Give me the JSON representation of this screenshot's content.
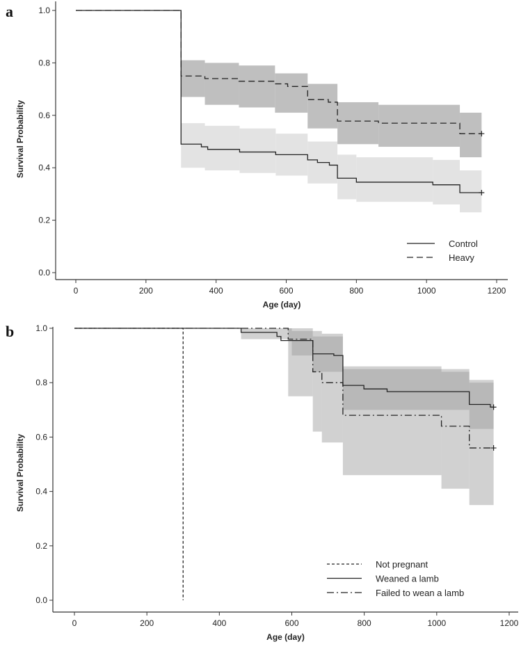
{
  "chart_data": [
    {
      "type": "line",
      "panel_label": "a",
      "xlabel": "Age (day)",
      "ylabel": "Survival Probability",
      "xlim": [
        -60,
        1230
      ],
      "ylim": [
        0,
        1.0
      ],
      "xticks": [
        "0",
        "200",
        "400",
        "600",
        "800",
        "1000",
        "1200"
      ],
      "yticks": [
        "0.0",
        "0.2",
        "0.4",
        "0.6",
        "0.8",
        "1.0"
      ],
      "legend_position": "bottom-right",
      "series": [
        {
          "name": "Control",
          "style": "solid",
          "steps": [
            [
              0,
              1.0
            ],
            [
              300,
              0.49
            ],
            [
              358,
              0.48
            ],
            [
              376,
              0.47
            ],
            [
              467,
              0.46
            ],
            [
              570,
              0.45
            ],
            [
              661,
              0.43
            ],
            [
              689,
              0.42
            ],
            [
              723,
              0.41
            ],
            [
              746,
              0.36
            ],
            [
              800,
              0.345
            ],
            [
              1018,
              0.335
            ],
            [
              1095,
              0.305
            ]
          ],
          "end": 1157,
          "censored": [
            1157
          ],
          "ci": [
            [
              300,
              368,
              0.4,
              0.57
            ],
            [
              368,
              467,
              0.39,
              0.56
            ],
            [
              467,
              570,
              0.38,
              0.55
            ],
            [
              570,
              661,
              0.37,
              0.53
            ],
            [
              661,
              746,
              0.34,
              0.5
            ],
            [
              746,
              800,
              0.28,
              0.45
            ],
            [
              800,
              1018,
              0.27,
              0.44
            ],
            [
              1018,
              1095,
              0.26,
              0.43
            ],
            [
              1095,
              1157,
              0.23,
              0.39
            ]
          ],
          "ci_color": "#e3e3e3"
        },
        {
          "name": "Heavy",
          "style": "dashed",
          "steps": [
            [
              0,
              1.0
            ],
            [
              300,
              0.75
            ],
            [
              368,
              0.74
            ],
            [
              465,
              0.73
            ],
            [
              568,
              0.72
            ],
            [
              604,
              0.71
            ],
            [
              661,
              0.66
            ],
            [
              720,
              0.65
            ],
            [
              746,
              0.578
            ],
            [
              863,
              0.57
            ],
            [
              1095,
              0.53
            ]
          ],
          "end": 1157,
          "censored": [
            1157
          ],
          "ci": [
            [
              300,
              368,
              0.67,
              0.81
            ],
            [
              368,
              465,
              0.64,
              0.8
            ],
            [
              465,
              568,
              0.63,
              0.79
            ],
            [
              568,
              661,
              0.61,
              0.76
            ],
            [
              661,
              746,
              0.55,
              0.72
            ],
            [
              746,
              863,
              0.49,
              0.65
            ],
            [
              863,
              1095,
              0.48,
              0.64
            ],
            [
              1095,
              1157,
              0.44,
              0.61
            ]
          ],
          "ci_color": "#bfbfbf"
        }
      ]
    },
    {
      "type": "line",
      "panel_label": "b",
      "xlabel": "Age (day)",
      "ylabel": "Survival Probability",
      "xlim": [
        -60,
        1230
      ],
      "ylim": [
        0,
        1.0
      ],
      "xticks": [
        "0",
        "200",
        "400",
        "600",
        "800",
        "1000",
        "1200"
      ],
      "yticks": [
        "0.0",
        "0.2",
        "0.4",
        "0.6",
        "0.8",
        "1.0"
      ],
      "legend_position": "bottom-right",
      "series": [
        {
          "name": "Not pregnant",
          "style": "dotted",
          "steps": [
            [
              0,
              1.0
            ],
            [
              300,
              0.0
            ]
          ],
          "end": 300,
          "censored": [],
          "ci": []
        },
        {
          "name": "Weaned a lamb",
          "style": "solid",
          "steps": [
            [
              0,
              1.0
            ],
            [
              460,
              0.985
            ],
            [
              559,
              0.97
            ],
            [
              570,
              0.955
            ],
            [
              658,
              0.906
            ],
            [
              716,
              0.9
            ],
            [
              741,
              0.79
            ],
            [
              799,
              0.777
            ],
            [
              863,
              0.767
            ],
            [
              1090,
              0.72
            ],
            [
              1148,
              0.71
            ]
          ],
          "end": 1157,
          "censored": [
            1157
          ],
          "ci": [
            [
              460,
              600,
              0.96,
              1.0
            ],
            [
              600,
              658,
              0.9,
              0.99
            ],
            [
              658,
              741,
              0.84,
              0.97
            ],
            [
              741,
              1090,
              0.7,
              0.85
            ],
            [
              1090,
              1157,
              0.63,
              0.81
            ]
          ]
        },
        {
          "name": "Failed to wean a lamb",
          "style": "dashdot",
          "steps": [
            [
              0,
              1.0
            ],
            [
              590,
              0.96
            ],
            [
              658,
              0.84
            ],
            [
              683,
              0.8
            ],
            [
              741,
              0.68
            ],
            [
              1013,
              0.64
            ],
            [
              1090,
              0.56
            ]
          ],
          "end": 1157,
          "censored": [
            1157
          ],
          "ci": [
            [
              590,
              658,
              0.75,
              1.0
            ],
            [
              658,
              683,
              0.62,
              0.99
            ],
            [
              683,
              741,
              0.58,
              0.98
            ],
            [
              741,
              1013,
              0.46,
              0.86
            ],
            [
              1013,
              1090,
              0.41,
              0.84
            ],
            [
              1090,
              1157,
              0.35,
              0.8
            ]
          ]
        }
      ]
    }
  ]
}
